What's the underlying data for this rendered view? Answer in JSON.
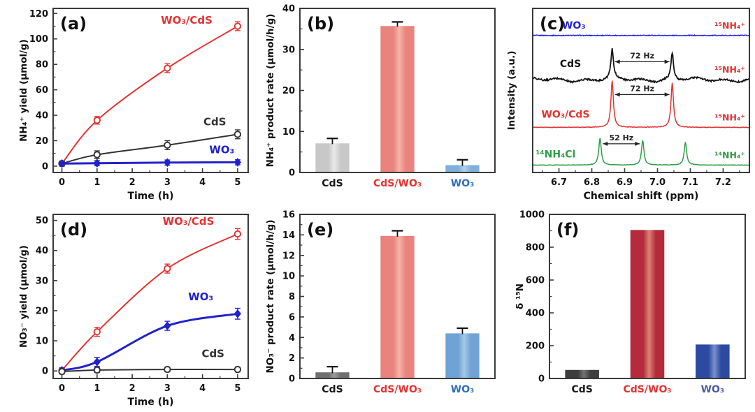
{
  "figure": {
    "background": "#ffffff",
    "accent_red": "#e63232",
    "accent_blue": "#2121cc",
    "accent_green": "#2f9e46",
    "frame_color": "#3a3a3a"
  },
  "chart_data": [
    {
      "id": "a",
      "type": "line",
      "panel_label": "(a)",
      "xlabel": "Time (h)",
      "ylabel": "NH₄⁺ yield (μmol/g)",
      "xlim": [
        -0.25,
        5.3
      ],
      "ylim": [
        -5,
        124
      ],
      "xticks": [
        0,
        1,
        2,
        3,
        4,
        5
      ],
      "xminor_step": 0.5,
      "yticks": [
        0,
        20,
        40,
        60,
        80,
        100,
        120
      ],
      "yminor_step": 10,
      "x": [
        0,
        1,
        3,
        5
      ],
      "series": [
        {
          "name": "WO₃/CdS",
          "color": "#e63232",
          "marker": "circle",
          "lw": 2,
          "values": [
            2,
            36,
            77,
            110
          ],
          "errors": [
            2,
            3,
            3.5,
            3.5
          ],
          "label": {
            "x": 3.55,
            "y": 112
          }
        },
        {
          "name": "CdS",
          "color": "#333333",
          "marker": "circle",
          "lw": 2,
          "values": [
            2,
            9,
            16.5,
            25
          ],
          "errors": [
            2,
            3,
            3.5,
            3.5
          ],
          "label": {
            "x": 4.35,
            "y": 32
          }
        },
        {
          "name": "WO₃",
          "color": "#2121cc",
          "marker": "diamond",
          "lw": 3,
          "values": [
            2,
            2.3,
            2.8,
            3
          ],
          "errors": [
            1.5,
            2,
            2,
            2
          ],
          "label": {
            "x": 4.55,
            "y": 10
          }
        }
      ]
    },
    {
      "id": "b",
      "type": "bar",
      "panel_label": "(b)",
      "xlabel": "",
      "ylabel": "NH₄⁺ product rate (μmol/h/g)",
      "ylim": [
        0,
        40
      ],
      "yticks": [
        0,
        10,
        20,
        30,
        40
      ],
      "yminor_step": 5,
      "categories": [
        "CdS",
        "CdS/WO₃",
        "WO₃"
      ],
      "category_colors": [
        "#1a1a1a",
        "#e63232",
        "#2e6fc0"
      ],
      "values": [
        7.1,
        35.7,
        1.8
      ],
      "errors": [
        1.2,
        1.0,
        1.3
      ],
      "bar_colors": [
        [
          "#c8c8c8",
          "#e9e9e9"
        ],
        [
          "#e8837d",
          "#f6b4a8"
        ],
        [
          "#7fb0d9",
          "#b2d2ea"
        ]
      ]
    },
    {
      "id": "c",
      "type": "nmr",
      "panel_label": "(c)",
      "xlabel": "Chemical shift (ppm)",
      "ylabel": "Intensity (a.u.)",
      "xlim": [
        6.62,
        7.28
      ],
      "xticks": [
        6.7,
        6.8,
        6.9,
        7.0,
        7.1,
        7.2
      ],
      "xminor_step": 0.05,
      "traces": [
        {
          "name": "WO₃",
          "color": "#2222dd",
          "baseline": 0.835,
          "noise": 1.1,
          "peaks": [],
          "right_label": "¹⁵NH₄⁺",
          "right_label_color": "#e63232",
          "name_pos": {
            "x": 6.745,
            "dy": -10
          }
        },
        {
          "name": "CdS",
          "color": "#151515",
          "baseline": 0.565,
          "noise": 2.4,
          "peaks": [
            {
              "x": 6.862,
              "h": 0.175
            },
            {
              "x": 7.045,
              "h": 0.16
            }
          ],
          "right_label": "¹⁵NH₄⁺",
          "right_label_color": "#e63232",
          "name_pos": {
            "x": 6.735,
            "dy": -18
          },
          "annotation": {
            "text": "72 Hz",
            "x1": 6.862,
            "x2": 7.045,
            "h": 0.675
          }
        },
        {
          "name": "WO₃/CdS",
          "color": "#e63232",
          "baseline": 0.275,
          "noise": 0.8,
          "peaks": [
            {
              "x": 6.862,
              "h": 0.285
            },
            {
              "x": 7.045,
              "h": 0.27
            }
          ],
          "right_label": "¹⁵NH₄⁺",
          "right_label_color": "#e63232",
          "name_pos": {
            "x": 6.72,
            "dy": -14
          },
          "annotation": {
            "text": "72 Hz",
            "x1": 6.862,
            "x2": 7.045,
            "h": 0.475
          }
        },
        {
          "name": "¹⁴NH₄Cl",
          "color": "#2f9e46",
          "baseline": 0.045,
          "noise": 0.6,
          "peaks": [
            {
              "x": 6.825,
              "h": 0.165
            },
            {
              "x": 6.955,
              "h": 0.15
            },
            {
              "x": 7.085,
              "h": 0.14
            }
          ],
          "right_label": "¹⁴NH₄⁺",
          "right_label_color": "#2f9e46",
          "name_pos": {
            "x": 6.69,
            "dy": -11
          },
          "annotation": {
            "text": "52 Hz",
            "x1": 6.825,
            "x2": 6.955,
            "h": 0.175
          }
        }
      ]
    },
    {
      "id": "d",
      "type": "line",
      "panel_label": "(d)",
      "xlabel": "Time (h)",
      "ylabel": "NO₃⁻ yield (μmol/g)",
      "xlim": [
        -0.25,
        5.3
      ],
      "ylim": [
        -2.5,
        52
      ],
      "xticks": [
        0,
        1,
        2,
        3,
        4,
        5
      ],
      "xminor_step": 0.5,
      "yticks": [
        0,
        10,
        20,
        30,
        40,
        50
      ],
      "yminor_step": 5,
      "x": [
        0,
        1,
        3,
        5
      ],
      "series": [
        {
          "name": "WO₃/CdS",
          "color": "#e63232",
          "marker": "circle",
          "lw": 2,
          "values": [
            0.2,
            13,
            34,
            45.5
          ],
          "errors": [
            0.8,
            1.5,
            1.5,
            1.8
          ],
          "label": {
            "x": 3.6,
            "y": 48.5
          }
        },
        {
          "name": "WO₃",
          "color": "#2121cc",
          "marker": "diamond",
          "lw": 3,
          "values": [
            0.2,
            3,
            15,
            19
          ],
          "errors": [
            0.8,
            1.5,
            1.5,
            1.8
          ],
          "label": {
            "x": 3.95,
            "y": 23.5
          }
        },
        {
          "name": "CdS",
          "color": "#333333",
          "marker": "circle",
          "lw": 2,
          "values": [
            -0.2,
            0.3,
            0.5,
            0.5
          ],
          "errors": [
            0.8,
            0.8,
            0.8,
            0.8
          ],
          "label": {
            "x": 4.3,
            "y": 4.6
          }
        }
      ]
    },
    {
      "id": "e",
      "type": "bar",
      "panel_label": "(e)",
      "xlabel": "",
      "ylabel": "NO₃⁻ product rate (μmol/h/g)",
      "ylim": [
        0,
        16
      ],
      "yticks": [
        0,
        2,
        4,
        6,
        8,
        10,
        12,
        14,
        16
      ],
      "yminor_step": 1,
      "categories": [
        "CdS",
        "CdS/WO₃",
        "WO₃"
      ],
      "category_colors": [
        "#1a1a1a",
        "#e63232",
        "#2e6fc0"
      ],
      "values": [
        0.6,
        13.9,
        4.4
      ],
      "errors": [
        0.55,
        0.5,
        0.5
      ],
      "bar_colors": [
        [
          "#6f6f6f",
          "#9b9b9b"
        ],
        [
          "#e8837d",
          "#f6b4a8"
        ],
        [
          "#6fa3d4",
          "#a5c9e6"
        ]
      ]
    },
    {
      "id": "f",
      "type": "bar",
      "panel_label": "(f)",
      "xlabel": "",
      "ylabel": "δ ¹⁵N",
      "ylim": [
        0,
        1000
      ],
      "yticks": [
        0,
        200,
        400,
        600,
        800,
        1000
      ],
      "yminor_step": 100,
      "categories": [
        "CdS",
        "CdS/WO₃",
        "WO₃"
      ],
      "category_colors": [
        "#1a1a1a",
        "#e63232",
        "#4a5d9c"
      ],
      "values": [
        52,
        905,
        207
      ],
      "errors": null,
      "bar_colors": [
        [
          "#3d3d3d",
          "#747474"
        ],
        [
          "#b42b3c",
          "#dc8273"
        ],
        [
          "#2c4aa0",
          "#7d90cd"
        ]
      ]
    }
  ]
}
